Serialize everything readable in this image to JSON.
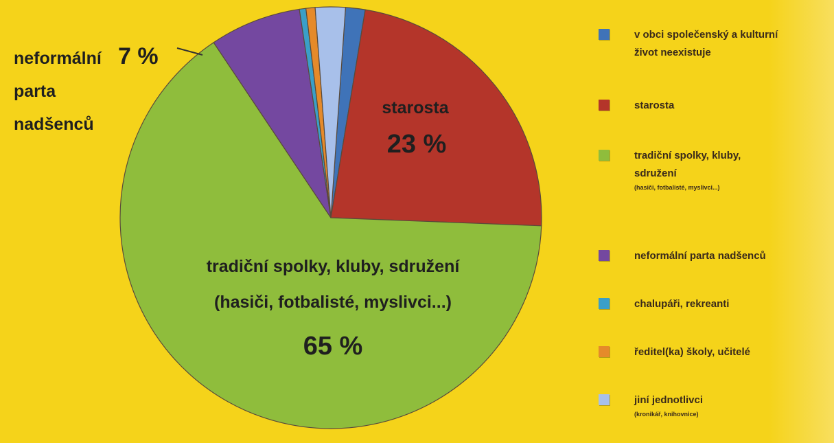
{
  "chart_data": {
    "type": "pie",
    "slices": [
      {
        "label": "v obci společenský a kulturní život neexistuje",
        "value": 1.5,
        "color": "#3f73b8"
      },
      {
        "label": "starosta",
        "value": 23,
        "color": "#b4352a"
      },
      {
        "label": "tradiční spolky, kluby, sdružení (hasiči, fotbalisté, myslivci...)",
        "value": 65,
        "color": "#8fbd3c"
      },
      {
        "label": "neformální parta nadšenců",
        "value": 7,
        "color": "#7448a0"
      },
      {
        "label": "chalupáři, rekreanti",
        "value": 0.5,
        "color": "#3a9fc8"
      },
      {
        "label": "ředitel(ka) školy, učitelé",
        "value": 0.7,
        "color": "#e58a2a"
      },
      {
        "label": "jiní jednotlivci (kronikář, knihovnice)",
        "value": 2.3,
        "color": "#a8c0ea"
      }
    ],
    "slice_labels": {
      "starosta_name": "starosta",
      "starosta_pct": "23 %",
      "tradicni_line1": "tradiční spolky, kluby, sdružení",
      "tradicni_line2": "(hasiči, fotbalisté, myslivci...)",
      "tradicni_pct": "65 %",
      "neformalni_line1": "neformální",
      "neformalni_line2": "parta",
      "neformalni_line3": "nadšenců",
      "neformalni_pct": "7 %"
    },
    "legend": [
      {
        "main": "v obci společenský a kulturní",
        "main2": "život neexistuje",
        "sub": ""
      },
      {
        "main": "starosta",
        "main2": "",
        "sub": ""
      },
      {
        "main": "tradiční spolky, kluby,",
        "main2": "sdružení",
        "sub": "(hasiči, fotbalisté, myslivci...)"
      },
      {
        "main": "neformální parta nadšenců",
        "main2": "",
        "sub": ""
      },
      {
        "main": "chalupáři, rekreanti",
        "main2": "",
        "sub": ""
      },
      {
        "main": "ředitel(ka) školy, učitelé",
        "main2": "",
        "sub": ""
      },
      {
        "main": "jiní jednotlivci",
        "main2": "",
        "sub": "(kronikář, knihovnice)"
      }
    ],
    "legend_placement": "right"
  }
}
